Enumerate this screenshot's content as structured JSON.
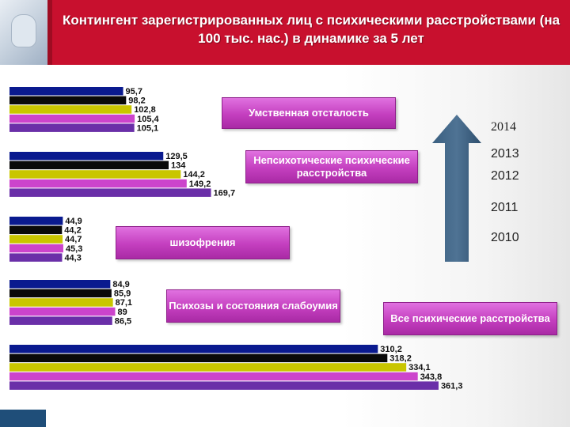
{
  "title": "Контингент зарегистрированных лиц с психическими расстройствами (на 100 тыс. нас.) в динамике за 5 лет",
  "years_top_to_bottom": [
    "2014",
    "2013",
    "2012",
    "2011",
    "2010"
  ],
  "colors": [
    "#0a1a8f",
    "#0a0a0a",
    "#c9c600",
    "#cc44cc",
    "#6a2fa8"
  ],
  "chart_data": {
    "type": "bar",
    "orientation": "horizontal",
    "categories": [
      "Умственная отсталость",
      "Непсихотические психические расстройства",
      "шизофрения",
      "Психозы и состояния слабоумия",
      "Все психические расстройства"
    ],
    "series": [
      {
        "name": "2010",
        "values": [
          95.7,
          129.5,
          44.9,
          84.9,
          310.2
        ]
      },
      {
        "name": "2011",
        "values": [
          98.2,
          134,
          44.2,
          85.9,
          318.2
        ]
      },
      {
        "name": "2012",
        "values": [
          102.8,
          144.2,
          44.7,
          87.1,
          334.1
        ]
      },
      {
        "name": "2013",
        "values": [
          105.4,
          149.2,
          45.3,
          89,
          343.8
        ]
      },
      {
        "name": "2014",
        "values": [
          105.1,
          169.7,
          44.3,
          86.5,
          361.3
        ]
      }
    ],
    "value_labels": [
      [
        "95,7",
        "98,2",
        "102,8",
        "105,4",
        "105,1"
      ],
      [
        "129,5",
        "134",
        "144,2",
        "149,2",
        "169,7"
      ],
      [
        "44,9",
        "44,2",
        "44,7",
        "45,3",
        "44,3"
      ],
      [
        "84,9",
        "85,9",
        "87,1",
        "89",
        "86,5"
      ],
      [
        "310,2",
        "318,2",
        "334,1",
        "343,8",
        "361,3"
      ]
    ]
  }
}
